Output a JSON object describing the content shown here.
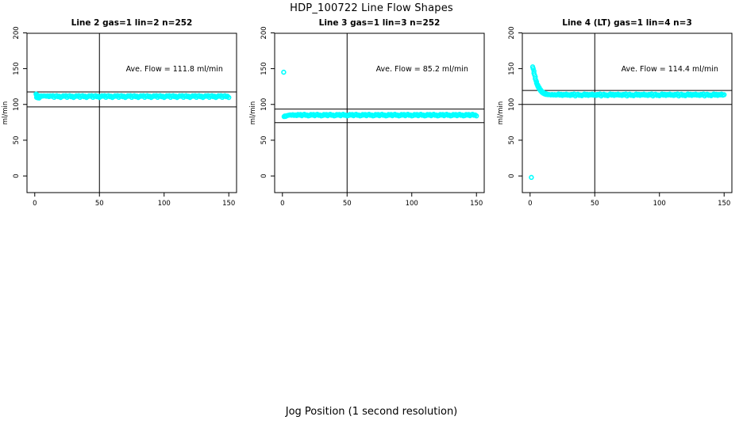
{
  "page": {
    "title": "HDP_100722  Line Flow Shapes",
    "shared_xlabel": "Jog Position (1 second resolution)"
  },
  "colors": {
    "points": "#00FFFF",
    "axis": "#000000",
    "background": "#FFFFFF"
  },
  "chart_data": [
    {
      "type": "scatter",
      "title": "Line 2 gas=1 lin=2 n=252",
      "ylabel": "ml/min",
      "annotation": "Ave. Flow =  111.8  ml/min",
      "annotation_xy": [
        108,
        146
      ],
      "ave_flow": 111.8,
      "x_ticks": [
        0,
        50,
        100,
        150
      ],
      "y_ticks": [
        0,
        50,
        100,
        150,
        200
      ],
      "xlim": [
        -6,
        156
      ],
      "ylim": [
        -23.2,
        199.4
      ],
      "grid": false,
      "hlines": [
        117.5,
        96.5
      ],
      "vline": 50,
      "x_start": 1,
      "x_step": 1,
      "y": [
        114.5,
        112.9,
        111.9,
        111.7,
        111.9,
        111.6,
        112.0,
        111.8,
        111.5,
        111.9,
        110.9,
        112.1,
        111.4,
        112.3,
        109.9,
        111.7,
        112.2,
        110.8,
        111.5,
        109.7,
        110.9,
        112.1,
        111.4,
        112.3,
        109.9,
        111.7,
        112.2,
        110.8,
        111.5,
        109.7,
        110.9,
        112.1,
        111.4,
        112.3,
        109.9,
        111.7,
        112.2,
        110.8,
        111.5,
        109.7,
        110.9,
        112.1,
        111.4,
        112.3,
        109.9,
        111.7,
        112.2,
        110.8,
        111.5,
        109.7,
        110.9,
        112.1,
        111.4,
        112.3,
        109.9,
        111.7,
        112.2,
        110.8,
        111.5,
        109.7,
        110.9,
        112.1,
        111.4,
        112.3,
        109.9,
        111.7,
        112.2,
        110.8,
        111.5,
        109.7,
        110.9,
        112.1,
        111.4,
        112.3,
        109.9,
        111.7,
        112.2,
        110.8,
        111.5,
        109.7,
        110.9,
        112.1,
        111.4,
        112.3,
        109.9,
        111.7,
        112.2,
        110.8,
        111.5,
        109.7,
        110.9,
        112.1,
        111.4,
        112.3,
        109.9,
        111.7,
        112.2,
        110.8,
        111.5,
        109.7,
        110.9,
        112.1,
        111.4,
        112.3,
        109.9,
        111.7,
        112.2,
        110.8,
        111.5,
        109.7,
        110.9,
        112.1,
        111.4,
        112.3,
        109.9,
        111.7,
        112.2,
        110.8,
        111.5,
        109.7,
        110.9,
        112.1,
        111.4,
        112.3,
        109.9,
        111.7,
        112.2,
        110.8,
        111.5,
        109.7,
        110.9,
        112.1,
        111.4,
        112.3,
        109.9,
        111.7,
        112.2,
        110.8,
        111.5,
        109.7,
        110.9,
        112.1,
        111.4,
        112.3,
        109.9,
        111.7,
        112.2,
        110.8,
        111.5,
        109.7
      ],
      "extra_points": [
        [
          1.2,
          113.6
        ],
        [
          1.6,
          112.4
        ],
        [
          2.0,
          110.8
        ],
        [
          1.4,
          109.8
        ],
        [
          2.4,
          109.2
        ],
        [
          2.8,
          110.4
        ],
        [
          3.4,
          109.0
        ],
        [
          4,
          110.3
        ]
      ]
    },
    {
      "type": "scatter",
      "title": "Line 3 gas=1 lin=3 n=252",
      "ylabel": "ml/min",
      "annotation": "Ave. Flow =  85.2  ml/min",
      "annotation_xy": [
        108,
        146
      ],
      "ave_flow": 85.2,
      "x_ticks": [
        0,
        50,
        100,
        150
      ],
      "y_ticks": [
        0,
        50,
        100,
        150,
        200
      ],
      "xlim": [
        -6,
        156
      ],
      "ylim": [
        -23.2,
        199.4
      ],
      "grid": false,
      "hlines": [
        93.5,
        74.5
      ],
      "vline": 50,
      "x_start": 1,
      "x_step": 1,
      "y": [
        145.0,
        83.4,
        84.0,
        84.6,
        85.0,
        85.4,
        84.9,
        85.6,
        84.7,
        85.3,
        84.5,
        85.9,
        85.1,
        86.0,
        84.2,
        85.5,
        86.2,
        84.8,
        85.3,
        84.0,
        84.5,
        85.9,
        85.1,
        86.0,
        84.2,
        85.5,
        86.2,
        84.8,
        85.3,
        84.0,
        84.5,
        85.9,
        85.1,
        86.0,
        84.2,
        85.5,
        86.2,
        84.8,
        85.3,
        84.0,
        84.5,
        85.9,
        85.1,
        86.0,
        84.2,
        85.5,
        86.2,
        84.8,
        85.3,
        84.0,
        84.5,
        85.9,
        85.1,
        86.0,
        84.2,
        85.5,
        86.2,
        84.8,
        85.3,
        84.0,
        84.5,
        85.9,
        85.1,
        86.0,
        84.2,
        85.5,
        86.2,
        84.8,
        85.3,
        84.0,
        84.5,
        85.9,
        85.1,
        86.0,
        84.2,
        85.5,
        86.2,
        84.8,
        85.3,
        84.0,
        84.5,
        85.9,
        85.1,
        86.0,
        84.2,
        85.5,
        86.2,
        84.8,
        85.3,
        84.0,
        84.5,
        85.9,
        85.1,
        86.0,
        84.2,
        85.5,
        86.2,
        84.8,
        85.3,
        84.0,
        84.5,
        85.9,
        85.1,
        86.0,
        84.2,
        85.5,
        86.2,
        84.8,
        85.3,
        84.0,
        84.5,
        85.9,
        85.1,
        86.0,
        84.2,
        85.5,
        86.2,
        84.8,
        85.3,
        84.0,
        84.5,
        85.9,
        85.1,
        86.0,
        84.2,
        85.5,
        86.2,
        84.8,
        85.3,
        84.0,
        84.5,
        85.9,
        85.1,
        86.0,
        84.2,
        85.5,
        86.2,
        84.8,
        85.3,
        84.0,
        84.5,
        85.9,
        85.1,
        86.0,
        84.2,
        85.5,
        86.2,
        84.8,
        85.3,
        84.0
      ],
      "extra_points": [
        [
          1.3,
          83.0
        ],
        [
          1.8,
          83.8
        ],
        [
          2.4,
          83.2
        ],
        [
          3.0,
          83.9
        ]
      ]
    },
    {
      "type": "scatter",
      "title": "Line 4 (LT) gas=1 lin=4 n=3",
      "ylabel": "ml/min",
      "annotation": "Ave. Flow =  114.4  ml/min",
      "annotation_xy": [
        108,
        146
      ],
      "ave_flow": 114.4,
      "x_ticks": [
        0,
        50,
        100,
        150
      ],
      "y_ticks": [
        0,
        50,
        100,
        150,
        200
      ],
      "xlim": [
        -6,
        156
      ],
      "ylim": [
        -23.2,
        199.4
      ],
      "grid": false,
      "hlines": [
        119.5,
        100.0
      ],
      "vline": 50,
      "x_start": 1,
      "x_step": 1,
      "y": [
        -2.0,
        152.5,
        143.5,
        136.0,
        129.8,
        125.2,
        121.8,
        119.2,
        117.2,
        115.8,
        114.8,
        114.1,
        113.9,
        113.6,
        113.8,
        113.3,
        113.9,
        113.2,
        113.7,
        113.1,
        113.5,
        114.6,
        113.0,
        114.2,
        112.6,
        113.9,
        113.3,
        114.4,
        112.9,
        113.6,
        112.5,
        114.1,
        113.2,
        114.6,
        111.9,
        113.6,
        114.3,
        112.7,
        113.4,
        112.2,
        113.5,
        114.6,
        113.0,
        114.2,
        112.6,
        113.9,
        113.3,
        114.4,
        112.9,
        113.6,
        112.5,
        114.1,
        113.2,
        114.6,
        111.9,
        113.6,
        114.3,
        112.7,
        113.4,
        112.2,
        113.5,
        114.6,
        113.0,
        114.2,
        112.6,
        113.9,
        113.3,
        114.4,
        112.9,
        113.6,
        112.5,
        114.1,
        113.2,
        114.6,
        111.9,
        113.6,
        114.3,
        112.7,
        113.4,
        112.2,
        113.5,
        114.6,
        113.0,
        114.2,
        112.6,
        113.9,
        113.3,
        114.4,
        112.9,
        113.6,
        112.5,
        114.1,
        113.2,
        114.6,
        111.9,
        113.6,
        114.3,
        112.7,
        113.4,
        112.2,
        113.5,
        114.6,
        113.0,
        114.2,
        112.6,
        113.9,
        113.3,
        114.4,
        112.9,
        113.6,
        112.5,
        114.1,
        113.2,
        114.6,
        111.9,
        113.6,
        114.3,
        112.7,
        113.4,
        112.2,
        113.5,
        114.6,
        113.0,
        114.2,
        112.6,
        113.9,
        113.3,
        114.4,
        112.9,
        113.6,
        112.5,
        114.1,
        113.2,
        114.6,
        111.9,
        113.6,
        114.3,
        112.7,
        113.4,
        112.2,
        113.5,
        114.6,
        113.0,
        114.2,
        112.6,
        113.9,
        113.3,
        114.4,
        112.9,
        113.6
      ],
      "extra_points": [
        [
          2.4,
          150.0
        ],
        [
          3,
          146.5
        ],
        [
          3.5,
          141.0
        ],
        [
          4,
          138.5
        ],
        [
          4.5,
          133.5
        ],
        [
          5,
          131.5
        ],
        [
          5.5,
          127.5
        ],
        [
          6,
          127.0
        ],
        [
          6.5,
          123.5
        ],
        [
          7,
          123.8
        ],
        [
          8,
          120.8
        ],
        [
          9,
          118.6
        ],
        [
          10,
          117.0
        ],
        [
          11,
          116.0
        ],
        [
          12,
          115.2
        ],
        [
          13,
          114.6
        ]
      ]
    }
  ]
}
